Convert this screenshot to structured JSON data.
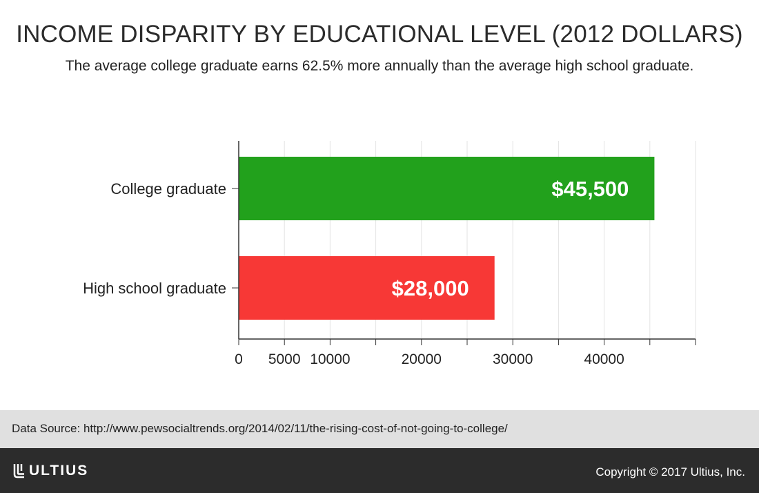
{
  "title": "INCOME DISPARITY BY EDUCATIONAL LEVEL (2012 DOLLARS)",
  "subtitle": "The average college graduate earns 62.5% more annually than the average high school graduate.",
  "chart_data": {
    "type": "bar",
    "orientation": "horizontal",
    "categories": [
      "College graduate",
      "High school graduate"
    ],
    "values": [
      45500,
      28000
    ],
    "data_labels": [
      "$45,500",
      "$28,000"
    ],
    "colors": [
      "#22a11c",
      "#f73836"
    ],
    "xlim": [
      0,
      50000
    ],
    "x_ticks": [
      0,
      5000,
      10000,
      20000,
      30000,
      40000
    ],
    "x_tick_marks": [
      0,
      5000,
      10000,
      15000,
      20000,
      25000,
      30000,
      35000,
      40000,
      45000,
      50000
    ],
    "grid": true,
    "legend": "none"
  },
  "source": "Data Source: http://www.pewsocialtrends.org/2014/02/11/the-rising-cost-of-not-going-to-college/",
  "footer": {
    "logo_text": "ULTIUS",
    "copyright": "Copyright © 2017 Ultius, Inc."
  }
}
